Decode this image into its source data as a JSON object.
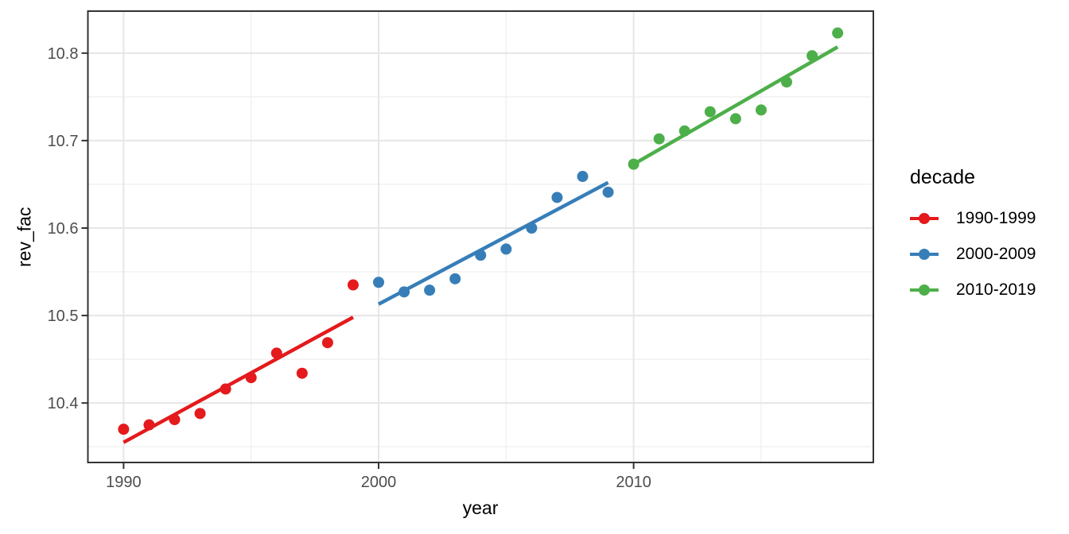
{
  "chart_data": {
    "type": "scatter",
    "title": "",
    "xlabel": "year",
    "ylabel": "rev_fac",
    "xlim": [
      1988.6,
      2019.4
    ],
    "ylim": [
      10.332,
      10.848
    ],
    "grid": true,
    "x_ticks": [
      1990,
      2000,
      2010
    ],
    "x_tick_labels": [
      "1990",
      "2000",
      "2010"
    ],
    "x_minor_ticks": [
      1995,
      2005,
      2015
    ],
    "y_ticks": [
      10.4,
      10.5,
      10.6,
      10.7,
      10.8
    ],
    "y_tick_labels": [
      "10.4",
      "10.5",
      "10.6",
      "10.7",
      "10.8"
    ],
    "y_minor_ticks": [
      10.35,
      10.45,
      10.55,
      10.65,
      10.75
    ],
    "legend": {
      "title": "decade",
      "position": "right",
      "entries": [
        "1990-1999",
        "2000-2009",
        "2010-2019"
      ]
    },
    "series": [
      {
        "name": "1990-1999",
        "color": "#E41A1C",
        "x": [
          1990,
          1991,
          1992,
          1993,
          1994,
          1995,
          1996,
          1997,
          1998,
          1999
        ],
        "y": [
          10.37,
          10.375,
          10.381,
          10.388,
          10.416,
          10.429,
          10.457,
          10.434,
          10.469,
          10.535
        ],
        "trend": {
          "x1": 1990,
          "y1": 10.355,
          "x2": 1999,
          "y2": 10.498
        }
      },
      {
        "name": "2000-2009",
        "color": "#377EB8",
        "x": [
          2000,
          2001,
          2002,
          2003,
          2004,
          2005,
          2006,
          2007,
          2008,
          2009
        ],
        "y": [
          10.538,
          10.527,
          10.529,
          10.542,
          10.569,
          10.576,
          10.6,
          10.635,
          10.659,
          10.641
        ],
        "trend": {
          "x1": 2000,
          "y1": 10.513,
          "x2": 2009,
          "y2": 10.652
        }
      },
      {
        "name": "2010-2019",
        "color": "#4DAF4A",
        "x": [
          2010,
          2011,
          2012,
          2013,
          2014,
          2015,
          2016,
          2017,
          2018
        ],
        "y": [
          10.673,
          10.702,
          10.711,
          10.733,
          10.725,
          10.735,
          10.767,
          10.797,
          10.823
        ],
        "trend": {
          "x1": 2010,
          "y1": 10.673,
          "x2": 2018,
          "y2": 10.807
        }
      }
    ]
  },
  "theme": {
    "background": "#FFFFFF",
    "panel_border": "#333333",
    "grid_major": "#E6E6E6",
    "grid_minor": "#F0F0F0",
    "tick_mark": "#333333",
    "tick_text": "#4D4D4D",
    "title_text": "#000000"
  }
}
